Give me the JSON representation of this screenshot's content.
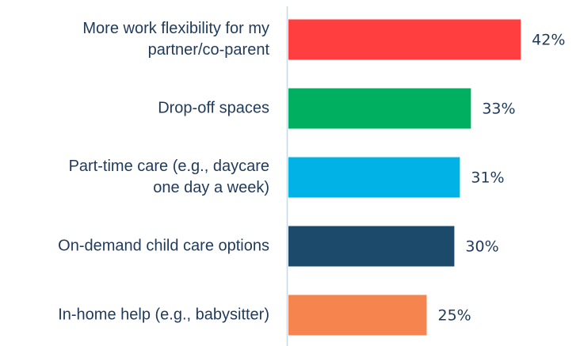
{
  "chart_data": {
    "type": "bar",
    "orientation": "horizontal",
    "categories": [
      [
        "More work flexibility for my",
        "partner/co-parent"
      ],
      [
        "Drop-off spaces"
      ],
      [
        "Part-time care (e.g., daycare",
        "one day a week)"
      ],
      [
        "On-demand child care options"
      ],
      [
        "In-home help (e.g., babysitter)"
      ]
    ],
    "values": [
      42,
      33,
      31,
      30,
      25
    ],
    "value_labels": [
      "42%",
      "33%",
      "31%",
      "30%",
      "25%"
    ],
    "colors": [
      "#ff3f3f",
      "#00b060",
      "#00b2e6",
      "#1b4a6b",
      "#f5844f"
    ]
  }
}
